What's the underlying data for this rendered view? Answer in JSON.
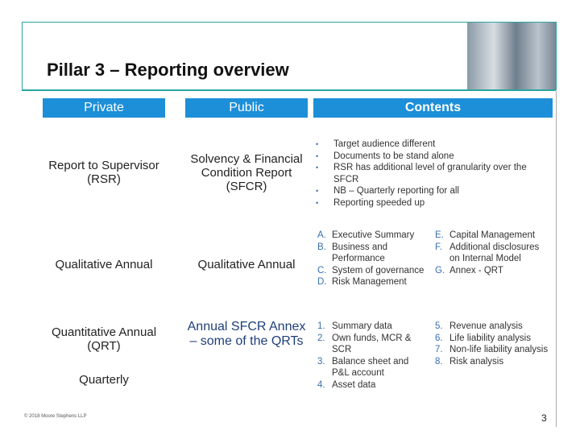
{
  "title": "Pillar 3 – Reporting overview",
  "headers": {
    "private": "Private",
    "public": "Public",
    "contents": "Contents"
  },
  "rows": [
    {
      "private": [
        "Report to Supervisor (RSR)"
      ],
      "public": "Solvency & Financial Condition Report (SFCR)",
      "bullets": [
        "Target audience different",
        "Documents to be stand alone",
        "RSR has additional level of granularity over the SFCR",
        "NB – Quarterly  reporting for all",
        "Reporting speeded up"
      ]
    },
    {
      "private": [
        "Qualitative Annual"
      ],
      "public": "Qualitative Annual",
      "columns": [
        [
          {
            "marker": "A.",
            "text": "Executive Summary"
          },
          {
            "marker": "B.",
            "text": "Business and Performance"
          },
          {
            "marker": "C.",
            "text": "System of governance"
          },
          {
            "marker": "D.",
            "text": "Risk Management"
          }
        ],
        [
          {
            "marker": "E.",
            "text": "Capital Management"
          },
          {
            "marker": "F.",
            "text": "Additional disclosures on Internal Model"
          },
          {
            "marker": "G.",
            "text": "Annex - QRT"
          }
        ]
      ]
    },
    {
      "private": [
        "Quantitative Annual (QRT)",
        "Quarterly"
      ],
      "public": "Annual SFCR Annex – some of the QRTs",
      "columns": [
        [
          {
            "marker": "1.",
            "text": "Summary data"
          },
          {
            "marker": "2.",
            "text": "Own funds, MCR & SCR"
          },
          {
            "marker": "3.",
            "text": "Balance sheet and P&L account"
          },
          {
            "marker": "4.",
            "text": "Asset data"
          }
        ],
        [
          {
            "marker": "5.",
            "text": "Revenue analysis"
          },
          {
            "marker": "6.",
            "text": "Life liability analysis"
          },
          {
            "marker": "7.",
            "text": "Non-life liability analysis"
          },
          {
            "marker": "8.",
            "text": "Risk analysis"
          }
        ]
      ]
    }
  ],
  "footer": "© 2018 Moore Stephens LLP",
  "page_number": "3"
}
